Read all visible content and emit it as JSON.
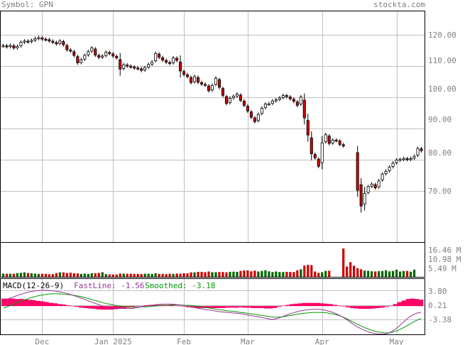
{
  "header": {
    "symbol_label": "Symbol: GPN",
    "site": "stockta.com"
  },
  "price_axis": {
    "ticks": [
      "120.00",
      "110.00",
      "100.00",
      "90.00",
      "80.00",
      "70.00"
    ]
  },
  "volume_axis": {
    "ticks": [
      "16.46 M",
      "10.98 M",
      "5.49 M"
    ]
  },
  "macd_panel": {
    "title": "MACD(12-26-9)",
    "fast_label": "FastLine: -1.56",
    "smooth_label": "Smoothed: -3.18",
    "ticks": [
      "3.80",
      "0.21",
      "-3.38"
    ]
  },
  "x_axis": {
    "labels": [
      "Dec",
      "Jan 2025",
      "Feb",
      "Mar",
      "Apr",
      "May"
    ]
  },
  "colors": {
    "up": "#ffffff",
    "down": "#cc0000",
    "vol_up": "#006600",
    "vol_down": "#cc0000",
    "fast": "#993399",
    "smooth": "#009900",
    "hist": "#ff0066",
    "grid": "#c0c0c0"
  },
  "chart_data": {
    "type": "candlestick",
    "title": "GPN daily",
    "price_ylim": [
      58,
      127
    ],
    "month_marks": [
      {
        "label": "Dec",
        "index": 11
      },
      {
        "label": "Jan 2025",
        "index": 31
      },
      {
        "label": "Feb",
        "index": 51
      },
      {
        "label": "Mar",
        "index": 69
      },
      {
        "label": "Apr",
        "index": 90
      },
      {
        "label": "May",
        "index": 111
      }
    ],
    "close": [
      116.5,
      116.2,
      116.6,
      115.8,
      116.3,
      117.6,
      118.0,
      117.8,
      118.2,
      118.8,
      119.1,
      118.6,
      118.5,
      118.0,
      117.6,
      117.1,
      118.0,
      116.8,
      115.2,
      114.8,
      113.4,
      111.0,
      112.0,
      113.4,
      114.6,
      115.8,
      113.5,
      112.8,
      113.2,
      114.4,
      114.0,
      113.2,
      112.6,
      109.0,
      110.4,
      110.0,
      109.7,
      109.4,
      109.2,
      108.6,
      109.5,
      110.5,
      111.3,
      114.0,
      112.8,
      111.9,
      111.2,
      110.8,
      112.6,
      111.8,
      108.4,
      107.3,
      106.6,
      104.7,
      106.6,
      104.8,
      104.2,
      103.9,
      102.1,
      103.8,
      106.1,
      103.2,
      100.6,
      98.0,
      99.7,
      100.3,
      101.0,
      99.0,
      97.4,
      95.6,
      93.6,
      92.2,
      94.5,
      96.5,
      97.8,
      97.9,
      98.8,
      99.2,
      99.8,
      100.6,
      100.2,
      99.5,
      98.7,
      97.4,
      100.1,
      93.4,
      87.9,
      81.9,
      80.6,
      77.9,
      85.4,
      88.0,
      85.2,
      86.3,
      86.2,
      84.9,
      84.4,
      null,
      null,
      null,
      70.2,
      65.2,
      69.2,
      71.4,
      72.2,
      71.0,
      73.2,
      75.4,
      76.3,
      77.6,
      78.9,
      79.9,
      80.1,
      80.4,
      80.1,
      80.4,
      81.1,
      83.6,
      82.9
    ],
    "volume_millions": [
      1.9,
      1.8,
      1.8,
      1.8,
      2.2,
      2.3,
      2.6,
      2.2,
      2.1,
      1.9,
      1.7,
      1.8,
      1.7,
      1.5,
      1.6,
      2.2,
      2.6,
      2.6,
      2.2,
      2.4,
      2.1,
      2.0,
      1.7,
      1.9,
      1.7,
      2.1,
      2.1,
      2.3,
      2.7,
      1.6,
      1.4,
      1.4,
      1.4,
      1.9,
      1.9,
      1.8,
      1.8,
      1.7,
      1.7,
      1.6,
      1.8,
      1.8,
      1.6,
      2.1,
      1.7,
      1.7,
      1.6,
      1.8,
      1.7,
      1.9,
      1.8,
      2.1,
      2.0,
      2.6,
      2.6,
      2.9,
      2.9,
      2.7,
      3.1,
      2.7,
      2.7,
      2.8,
      2.8,
      2.6,
      2.9,
      3.0,
      2.9,
      3.4,
      3.7,
      3.8,
      3.2,
      3.6,
      3.1,
      3.4,
      3.8,
      3.2,
      2.8,
      3.1,
      2.8,
      2.8,
      2.9,
      2.8,
      2.8,
      3.8,
      4.4,
      6.5,
      7.0,
      6.8,
      3.1,
      2.3,
      2.7,
      3.4,
      3.5,
      null,
      null,
      null,
      16.46,
      6.0,
      8.5,
      6.5,
      5.0,
      4.4,
      3.6,
      3.5,
      3.2,
      3.1,
      3.3,
      3.4,
      3.8,
      3.2,
      3.4,
      4.2,
      3.1,
      3.4,
      3.4,
      3.0,
      4.2
    ],
    "volume_ticks_millions": [
      16.46,
      10.98,
      5.49
    ],
    "macd": {
      "fast": [
        1.4,
        1.8,
        2.2,
        2.6,
        3.0,
        3.3,
        3.6,
        3.8,
        3.9,
        4.0,
        4.0,
        3.9,
        3.8,
        3.6,
        3.4,
        3.1,
        2.8,
        2.4,
        2.0,
        1.6,
        1.2,
        0.8,
        0.4,
        0.0,
        -0.3,
        -0.5,
        -0.6,
        -0.6,
        -0.6,
        -0.6,
        -0.6,
        -0.4,
        -0.2,
        0.0,
        0.2,
        0.3,
        0.4,
        0.5,
        0.5,
        0.5,
        0.4,
        0.3,
        0.1,
        -0.1,
        -0.3,
        -0.5,
        -0.7,
        -0.9,
        -1.0,
        -1.2,
        -1.4,
        -1.5,
        -1.6,
        -1.7,
        -1.8,
        -1.9,
        -2.1,
        -2.3,
        -2.5,
        -2.7,
        -2.9,
        -3.1,
        -3.3,
        -3.3,
        -3.0,
        -2.6,
        -2.2,
        -1.8,
        -1.5,
        -1.2,
        -1.0,
        -0.9,
        -0.8,
        -0.8,
        -0.9,
        -1.1,
        -1.4,
        -1.8,
        -2.3,
        -2.9,
        -3.6,
        -4.4,
        -5.1,
        -5.7,
        -6.2,
        -6.6,
        -6.9,
        -7.0,
        -7.1,
        -7.0,
        -6.6,
        -5.9,
        -5.0,
        -4.0,
        -3.0,
        -2.3,
        -1.8,
        -1.56
      ],
      "smooth": [
        -0.5,
        -0.1,
        0.3,
        0.8,
        1.2,
        1.6,
        2.0,
        2.3,
        2.6,
        2.8,
        3.0,
        3.1,
        3.1,
        3.1,
        3.0,
        2.9,
        2.8,
        2.6,
        2.4,
        2.1,
        1.8,
        1.5,
        1.2,
        0.9,
        0.6,
        0.4,
        0.2,
        0.0,
        -0.1,
        -0.2,
        -0.3,
        -0.3,
        -0.2,
        -0.2,
        -0.1,
        0.0,
        0.1,
        0.2,
        0.2,
        0.3,
        0.3,
        0.3,
        0.2,
        0.2,
        0.1,
        0.0,
        -0.2,
        -0.4,
        -0.5,
        -0.7,
        -0.9,
        -1.0,
        -1.2,
        -1.3,
        -1.4,
        -1.6,
        -1.7,
        -1.9,
        -2.0,
        -2.2,
        -2.4,
        -2.5,
        -2.7,
        -2.8,
        -2.8,
        -2.7,
        -2.5,
        -2.3,
        -2.1,
        -1.9,
        -1.8,
        -1.7,
        -1.6,
        -1.6,
        -1.6,
        -1.7,
        -1.9,
        -2.1,
        -2.4,
        -2.8,
        -3.3,
        -3.9,
        -4.5,
        -5.0,
        -5.5,
        -5.9,
        -6.3,
        -6.5,
        -6.7,
        -6.8,
        -6.7,
        -6.4,
        -6.0,
        -5.4,
        -4.8,
        -4.2,
        -3.6,
        -3.18
      ],
      "ylim": [
        -6,
        5
      ]
    }
  }
}
